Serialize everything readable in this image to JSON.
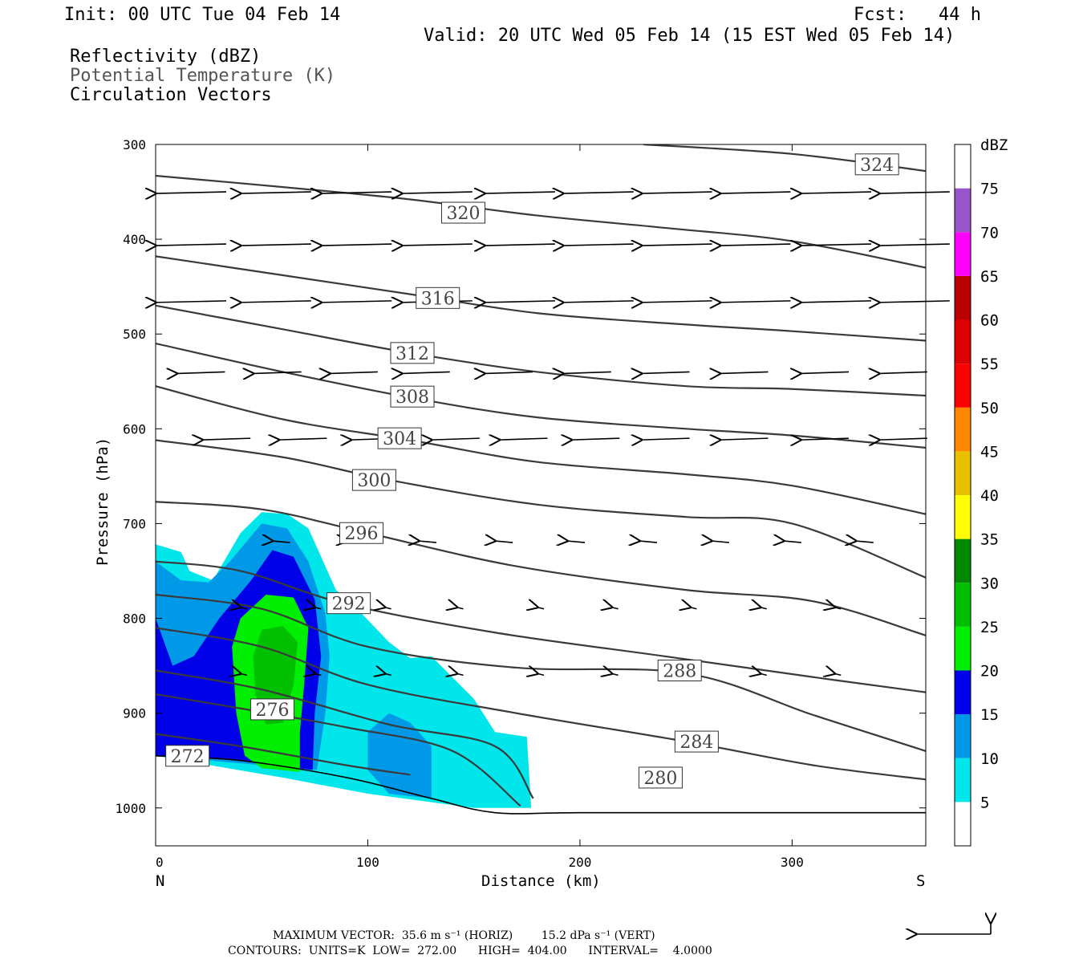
{
  "header": {
    "init": "Init: 00 UTC Tue 04 Feb 14",
    "fcst": "Fcst:   44 h",
    "valid": "Valid: 20 UTC Wed 05 Feb 14 (15 EST Wed 05 Feb 14)",
    "field1": "Reflectivity (dBZ)",
    "field2": "Potential Temperature (K)",
    "field3": "Circulation Vectors"
  },
  "colorbar": {
    "unit": "dBZ",
    "levels": [
      5,
      10,
      15,
      20,
      25,
      30,
      35,
      40,
      45,
      50,
      55,
      60,
      65,
      70,
      75
    ],
    "colors": [
      "#00e6ea",
      "#0099e8",
      "#0000e8",
      "#00ee00",
      "#00c000",
      "#008800",
      "#ffff00",
      "#e8c000",
      "#ff8800",
      "#ff0000",
      "#dd0000",
      "#bb0000",
      "#ff00ff",
      "#9955cc"
    ]
  },
  "chart_data": {
    "type": "contour",
    "xlabel": "Distance (km)",
    "ylabel": "Pressure (hPa)",
    "xlim": [
      0,
      363
    ],
    "ylim": [
      1040,
      300
    ],
    "xticks": [
      0,
      100,
      200,
      300
    ],
    "yticks": [
      300,
      400,
      500,
      600,
      700,
      800,
      900,
      1000
    ],
    "left_end_label": "N",
    "right_end_label": "S",
    "theta_contours": [
      {
        "label": "324",
        "label_at": [
          340,
          321
        ],
        "points": [
          [
            230,
            300
          ],
          [
            300,
            310
          ],
          [
            363,
            328
          ]
        ]
      },
      {
        "label": "320",
        "label_at": [
          145,
          372
        ],
        "points": [
          [
            0,
            333
          ],
          [
            60,
            345
          ],
          [
            120,
            358
          ],
          [
            180,
            375
          ],
          [
            240,
            388
          ],
          [
            300,
            402
          ],
          [
            363,
            430
          ]
        ]
      },
      {
        "label": "316",
        "label_at": [
          133,
          462
        ],
        "points": [
          [
            0,
            418
          ],
          [
            60,
            438
          ],
          [
            120,
            458
          ],
          [
            180,
            478
          ],
          [
            250,
            490
          ],
          [
            300,
            497
          ],
          [
            363,
            507
          ]
        ]
      },
      {
        "label": "312",
        "label_at": [
          121,
          520
        ],
        "points": [
          [
            0,
            470
          ],
          [
            60,
            495
          ],
          [
            120,
            520
          ],
          [
            180,
            540
          ],
          [
            250,
            555
          ],
          [
            300,
            558
          ],
          [
            363,
            565
          ]
        ]
      },
      {
        "label": "308",
        "label_at": [
          121,
          566
        ],
        "points": [
          [
            0,
            510
          ],
          [
            60,
            540
          ],
          [
            120,
            567
          ],
          [
            180,
            588
          ],
          [
            250,
            600
          ],
          [
            300,
            607
          ],
          [
            363,
            620
          ]
        ]
      },
      {
        "label": "304",
        "label_at": [
          115,
          610
        ],
        "points": [
          [
            0,
            555
          ],
          [
            60,
            590
          ],
          [
            120,
            612
          ],
          [
            180,
            635
          ],
          [
            250,
            648
          ],
          [
            300,
            660
          ],
          [
            363,
            690
          ]
        ]
      },
      {
        "label": "300",
        "label_at": [
          103,
          654
        ],
        "points": [
          [
            0,
            612
          ],
          [
            60,
            630
          ],
          [
            110,
            654
          ],
          [
            180,
            680
          ],
          [
            250,
            693
          ],
          [
            300,
            700
          ],
          [
            363,
            757
          ]
        ]
      },
      {
        "label": "296",
        "label_at": [
          97,
          710
        ],
        "points": [
          [
            0,
            677
          ],
          [
            50,
            685
          ],
          [
            100,
            710
          ],
          [
            170,
            745
          ],
          [
            250,
            770
          ],
          [
            310,
            782
          ],
          [
            363,
            818
          ]
        ]
      },
      {
        "label": "292",
        "label_at": [
          91,
          784
        ],
        "points": [
          [
            0,
            740
          ],
          [
            40,
            750
          ],
          [
            90,
            785
          ],
          [
            160,
            815
          ],
          [
            240,
            840
          ],
          [
            310,
            862
          ],
          [
            363,
            878
          ]
        ]
      },
      {
        "label": "288",
        "label_at": [
          247,
          855
        ],
        "points": [
          [
            0,
            775
          ],
          [
            50,
            790
          ],
          [
            100,
            830
          ],
          [
            170,
            852
          ],
          [
            250,
            858
          ],
          [
            310,
            902
          ],
          [
            363,
            940
          ]
        ]
      },
      {
        "label": "284",
        "label_at": [
          255,
          930
        ],
        "points": [
          [
            0,
            810
          ],
          [
            50,
            830
          ],
          [
            100,
            870
          ],
          [
            170,
            900
          ],
          [
            250,
            930
          ],
          [
            310,
            955
          ],
          [
            363,
            970
          ]
        ]
      },
      {
        "label": "280",
        "label_at": [
          238,
          968
        ],
        "points": [
          [
            0,
            855
          ],
          [
            50,
            875
          ],
          [
            110,
            912
          ],
          [
            160,
            935
          ],
          [
            178,
            990
          ]
        ]
      },
      {
        "label": "276",
        "label_at": [
          55,
          896
        ],
        "points": [
          [
            0,
            880
          ],
          [
            40,
            895
          ],
          [
            90,
            915
          ],
          [
            140,
            940
          ],
          [
            172,
            998
          ]
        ]
      },
      {
        "label": "272",
        "label_at": [
          15,
          945
        ],
        "points": [
          [
            0,
            922
          ],
          [
            40,
            935
          ],
          [
            90,
            955
          ],
          [
            120,
            965
          ]
        ]
      }
    ],
    "reflectivity_regions": [
      {
        "dbz": 5,
        "points": [
          [
            0,
            722
          ],
          [
            12,
            730
          ],
          [
            16,
            750
          ],
          [
            27,
            760
          ],
          [
            40,
            710
          ],
          [
            50,
            688
          ],
          [
            62,
            690
          ],
          [
            72,
            705
          ],
          [
            85,
            770
          ],
          [
            95,
            790
          ],
          [
            110,
            825
          ],
          [
            120,
            842
          ],
          [
            130,
            840
          ],
          [
            150,
            885
          ],
          [
            160,
            920
          ],
          [
            175,
            925
          ],
          [
            177,
            1000
          ],
          [
            150,
            1000
          ],
          [
            100,
            985
          ],
          [
            60,
            968
          ],
          [
            0,
            945
          ]
        ]
      },
      {
        "dbz": 10,
        "points": [
          [
            0,
            740
          ],
          [
            12,
            760
          ],
          [
            25,
            762
          ],
          [
            35,
            740
          ],
          [
            50,
            700
          ],
          [
            62,
            705
          ],
          [
            72,
            740
          ],
          [
            80,
            795
          ],
          [
            82,
            840
          ],
          [
            80,
            900
          ],
          [
            76,
            960
          ],
          [
            0,
            945
          ]
        ]
      },
      {
        "dbz": 10,
        "points": [
          [
            100,
            920
          ],
          [
            110,
            900
          ],
          [
            120,
            910
          ],
          [
            130,
            935
          ],
          [
            130,
            990
          ],
          [
            110,
            985
          ],
          [
            100,
            960
          ]
        ]
      },
      {
        "dbz": 15,
        "points": [
          [
            0,
            800
          ],
          [
            8,
            850
          ],
          [
            18,
            840
          ],
          [
            30,
            800
          ],
          [
            45,
            760
          ],
          [
            55,
            728
          ],
          [
            65,
            735
          ],
          [
            75,
            780
          ],
          [
            78,
            840
          ],
          [
            75,
            900
          ],
          [
            74,
            960
          ],
          [
            40,
            950
          ],
          [
            0,
            945
          ]
        ]
      },
      {
        "dbz": 20,
        "points": [
          [
            36,
            830
          ],
          [
            40,
            800
          ],
          [
            52,
            775
          ],
          [
            65,
            778
          ],
          [
            72,
            810
          ],
          [
            70,
            870
          ],
          [
            68,
            920
          ],
          [
            68,
            962
          ],
          [
            50,
            958
          ],
          [
            42,
            945
          ],
          [
            38,
            900
          ]
        ]
      },
      {
        "dbz": 25,
        "points": [
          [
            46,
            840
          ],
          [
            50,
            812
          ],
          [
            60,
            808
          ],
          [
            67,
            825
          ],
          [
            65,
            870
          ],
          [
            60,
            910
          ],
          [
            52,
            912
          ],
          [
            47,
            880
          ]
        ]
      }
    ],
    "vectors": [
      {
        "row_p": 350,
        "x": [
          0,
          40,
          78,
          116,
          155,
          192,
          229,
          266,
          304,
          341
        ]
      },
      {
        "row_p": 405,
        "x": [
          0,
          40,
          78,
          116,
          155,
          192,
          229,
          266,
          304,
          341
        ]
      },
      {
        "row_p": 465,
        "x": [
          0,
          40,
          78,
          116,
          155,
          192,
          229,
          266,
          304,
          341
        ]
      },
      {
        "row_p": 540,
        "x": [
          10,
          46,
          82,
          116,
          155,
          192,
          229,
          266,
          304,
          341
        ]
      },
      {
        "row_p": 610,
        "x": [
          22,
          58,
          92,
          130,
          162,
          196,
          229,
          266,
          304,
          341
        ]
      },
      {
        "row_p": 720,
        "x": [
          55,
          90,
          124,
          160,
          194,
          228,
          262,
          296,
          330
        ]
      },
      {
        "row_p": 790,
        "x": [
          40,
          75,
          108,
          142,
          180,
          215,
          252,
          285,
          320
        ]
      },
      {
        "row_p": 860,
        "x": [
          40,
          75,
          108,
          142,
          180,
          215,
          252,
          285,
          320
        ]
      }
    ]
  },
  "footer": {
    "max_vector_line": "MAXIMUM VECTOR:  35.6 m s⁻¹ (HORIZ)        15.2 dPa s⁻¹ (VERT)",
    "contours_line": "CONTOURS:  UNITS=K  LOW=  272.00      HIGH=  404.00      INTERVAL=    4.0000"
  }
}
